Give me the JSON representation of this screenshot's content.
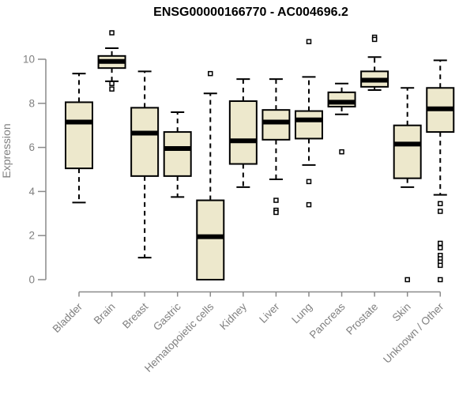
{
  "chart_data": {
    "type": "boxplot",
    "title": "ENSG00000166770 - AC004696.2",
    "xlabel": "",
    "ylabel": "Expression",
    "ylim": [
      0,
      10
    ],
    "yticks": [
      0,
      2,
      4,
      6,
      8,
      10
    ],
    "grid": false,
    "legend": "none",
    "categories": [
      "Bladder",
      "Brain",
      "Breast",
      "Gastric",
      "Hematopoietic cells",
      "Kidney",
      "Liver",
      "Lung",
      "Pancreas",
      "Prostate",
      "Skin",
      "Unknown / Other"
    ],
    "boxes": [
      {
        "category": "Bladder",
        "whisker_low": 3.5,
        "q1": 5.05,
        "median": 7.15,
        "q3": 8.05,
        "whisker_high": 9.35,
        "outliers": []
      },
      {
        "category": "Brain",
        "whisker_low": 9.0,
        "q1": 9.6,
        "median": 9.9,
        "q3": 10.15,
        "whisker_high": 10.5,
        "outliers": [
          11.2,
          8.9,
          8.65
        ]
      },
      {
        "category": "Breast",
        "whisker_low": 1.0,
        "q1": 4.7,
        "median": 6.65,
        "q3": 7.8,
        "whisker_high": 9.45,
        "outliers": []
      },
      {
        "category": "Gastric",
        "whisker_low": 3.75,
        "q1": 4.7,
        "median": 5.95,
        "q3": 6.7,
        "whisker_high": 7.6,
        "outliers": []
      },
      {
        "category": "Hematopoietic cells",
        "whisker_low": 0.0,
        "q1": 0.0,
        "median": 1.95,
        "q3": 3.6,
        "whisker_high": 8.45,
        "outliers": [
          9.35
        ]
      },
      {
        "category": "Kidney",
        "whisker_low": 4.2,
        "q1": 5.25,
        "median": 6.3,
        "q3": 8.1,
        "whisker_high": 9.1,
        "outliers": []
      },
      {
        "category": "Liver",
        "whisker_low": 4.55,
        "q1": 6.35,
        "median": 7.15,
        "q3": 7.7,
        "whisker_high": 9.1,
        "outliers": [
          3.6,
          3.15,
          3.05
        ]
      },
      {
        "category": "Lung",
        "whisker_low": 5.2,
        "q1": 6.4,
        "median": 7.25,
        "q3": 7.65,
        "whisker_high": 9.2,
        "outliers": [
          10.8,
          4.45,
          3.4
        ]
      },
      {
        "category": "Pancreas",
        "whisker_low": 7.5,
        "q1": 7.85,
        "median": 8.05,
        "q3": 8.5,
        "whisker_high": 8.9,
        "outliers": [
          5.8
        ]
      },
      {
        "category": "Prostate",
        "whisker_low": 8.6,
        "q1": 8.75,
        "median": 9.05,
        "q3": 9.45,
        "whisker_high": 10.1,
        "outliers": [
          11.0,
          10.9
        ]
      },
      {
        "category": "Skin",
        "whisker_low": 4.2,
        "q1": 4.6,
        "median": 6.15,
        "q3": 7.0,
        "whisker_high": 8.7,
        "outliers": [
          0.0
        ]
      },
      {
        "category": "Unknown / Other",
        "whisker_low": 3.85,
        "q1": 6.7,
        "median": 7.75,
        "q3": 8.7,
        "whisker_high": 9.95,
        "outliers": [
          3.45,
          3.1,
          1.65,
          1.45,
          1.1,
          0.95,
          0.8,
          0.65,
          0.0
        ]
      }
    ],
    "colors": {
      "box_fill": "#ede8cc",
      "box_border": "#000000",
      "median": "#000000",
      "whisker": "#000000",
      "outlier_stroke": "#000000",
      "outlier_fill": "#ffffff",
      "axis": "#8a8a8a",
      "tick_label": "#808080",
      "title": "#000000",
      "background": "#ffffff"
    }
  }
}
